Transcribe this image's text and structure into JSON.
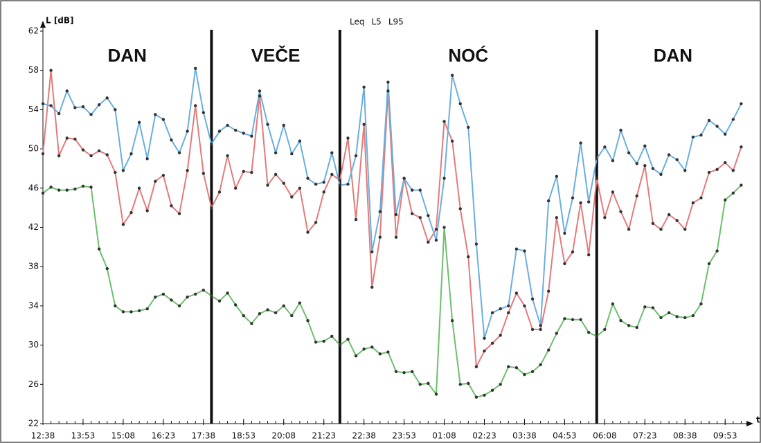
{
  "chart_data": {
    "type": "line",
    "y_label": "L [dB]",
    "x_label": "t",
    "x": [
      0,
      15,
      30,
      45,
      60,
      75,
      90,
      105,
      120,
      135,
      150,
      165,
      180,
      195,
      210,
      225,
      240,
      255,
      270,
      285,
      300,
      315,
      330,
      345,
      360,
      375,
      390,
      405,
      420,
      435,
      450,
      465,
      480,
      495,
      510,
      525,
      540,
      555,
      570,
      585,
      600,
      615,
      630,
      645,
      660,
      675,
      690,
      705,
      720,
      735,
      750,
      765,
      780,
      795,
      810,
      825,
      840,
      855,
      870,
      885,
      900,
      915,
      930,
      945,
      960,
      975,
      990,
      1005,
      1020,
      1035,
      1050,
      1065,
      1080,
      1095,
      1110,
      1125,
      1140,
      1155,
      1170,
      1185,
      1200,
      1215,
      1230,
      1245,
      1260,
      1275,
      1290,
      1305
    ],
    "xlim": [
      0,
      1320
    ],
    "xticks": [
      {
        "value": 0,
        "label": "12:38"
      },
      {
        "value": 75,
        "label": "13:53"
      },
      {
        "value": 150,
        "label": "15:08"
      },
      {
        "value": 225,
        "label": "16:23"
      },
      {
        "value": 300,
        "label": "17:38"
      },
      {
        "value": 375,
        "label": "18:53"
      },
      {
        "value": 450,
        "label": "20:08"
      },
      {
        "value": 525,
        "label": "21:23"
      },
      {
        "value": 600,
        "label": "22:38"
      },
      {
        "value": 675,
        "label": "23:53"
      },
      {
        "value": 750,
        "label": "01:08"
      },
      {
        "value": 825,
        "label": "02:23"
      },
      {
        "value": 900,
        "label": "03:38"
      },
      {
        "value": 975,
        "label": "04:53"
      },
      {
        "value": 1050,
        "label": "06:08"
      },
      {
        "value": 1125,
        "label": "07:23"
      },
      {
        "value": 1200,
        "label": "08:38"
      },
      {
        "value": 1275,
        "label": "09:53"
      }
    ],
    "ylim": [
      22,
      62
    ],
    "yticks": [
      22,
      26,
      30,
      34,
      38,
      42,
      46,
      50,
      54,
      58,
      62
    ],
    "periods": [
      "DAN",
      "VEČE",
      "NOĆ",
      "DAN"
    ],
    "boundaries": [
      315,
      555,
      1035
    ],
    "series": [
      {
        "name": "Leq",
        "color": "#e47a7a",
        "values": [
          49.5,
          58.0,
          49.3,
          51.1,
          51.0,
          49.9,
          49.3,
          49.8,
          49.4,
          47.6,
          42.3,
          43.5,
          46.0,
          43.7,
          46.7,
          47.3,
          44.2,
          43.4,
          47.8,
          54.4,
          47.5,
          44.0,
          45.6,
          49.3,
          46.0,
          47.7,
          47.6,
          55.4,
          46.3,
          47.4,
          46.5,
          45.1,
          46.0,
          41.5,
          42.5,
          45.6,
          47.4,
          46.8,
          51.1,
          42.8,
          52.5,
          35.9,
          41.0,
          55.9,
          41.0,
          47.0,
          43.4,
          43.0,
          40.5,
          41.8,
          52.8,
          50.8,
          43.9,
          39.0,
          27.8,
          29.4,
          30.2,
          31.0,
          33.3,
          35.3,
          34.0,
          31.6,
          31.6,
          35.5,
          43.0,
          38.3,
          39.5,
          44.5,
          39.2,
          47.0,
          43.0,
          45.6,
          43.6,
          41.8,
          45.2,
          48.3,
          42.4,
          41.8,
          43.3,
          42.7,
          41.8,
          44.5,
          45.0,
          47.6,
          47.9,
          48.6,
          47.8,
          50.2
        ]
      },
      {
        "name": "L5",
        "color": "#6aaedf",
        "values": [
          54.6,
          54.4,
          53.6,
          55.9,
          54.2,
          54.3,
          53.5,
          54.5,
          55.2,
          54.0,
          47.8,
          49.5,
          52.7,
          49.0,
          53.5,
          53.0,
          50.9,
          49.6,
          51.8,
          58.2,
          53.7,
          50.5,
          51.8,
          52.4,
          51.9,
          51.6,
          51.3,
          55.9,
          52.5,
          49.6,
          52.4,
          49.5,
          50.8,
          47.0,
          46.4,
          46.6,
          49.6,
          46.3,
          46.4,
          49.3,
          56.3,
          39.5,
          43.6,
          56.8,
          43.3,
          47.0,
          45.8,
          45.8,
          43.2,
          40.7,
          47.0,
          57.5,
          54.6,
          52.2,
          40.3,
          30.7,
          33.3,
          33.7,
          34.0,
          39.8,
          39.6,
          34.7,
          32.0,
          44.7,
          47.2,
          41.4,
          45.0,
          50.6,
          44.6,
          49.0,
          50.2,
          48.8,
          51.9,
          49.6,
          48.5,
          50.3,
          48.0,
          47.4,
          49.4,
          48.9,
          47.8,
          51.2,
          51.4,
          52.9,
          52.3,
          51.5,
          53.0,
          54.6
        ]
      },
      {
        "name": "L95",
        "color": "#6cbf6c",
        "values": [
          45.5,
          46.1,
          45.8,
          45.8,
          45.9,
          46.2,
          46.1,
          39.8,
          37.8,
          34.0,
          33.4,
          33.4,
          33.5,
          33.7,
          34.9,
          35.2,
          34.6,
          34.0,
          34.9,
          35.2,
          35.6,
          35.0,
          34.5,
          35.3,
          34.1,
          33.0,
          32.2,
          33.2,
          33.6,
          33.3,
          34.0,
          33.0,
          34.3,
          32.5,
          30.3,
          30.4,
          30.9,
          30.0,
          30.6,
          28.9,
          29.6,
          29.8,
          29.1,
          29.3,
          27.3,
          27.2,
          27.3,
          26.0,
          26.1,
          25.0,
          42.0,
          32.5,
          26.0,
          26.1,
          24.7,
          24.9,
          25.4,
          26.0,
          27.8,
          27.7,
          27.0,
          27.3,
          28.0,
          29.5,
          31.2,
          32.7,
          32.6,
          32.6,
          31.3,
          30.9,
          31.6,
          34.2,
          32.5,
          32.0,
          31.8,
          33.9,
          33.8,
          32.8,
          33.3,
          32.9,
          32.8,
          33.0,
          34.2,
          38.3,
          39.6,
          44.8,
          45.5,
          46.3
        ]
      }
    ]
  }
}
